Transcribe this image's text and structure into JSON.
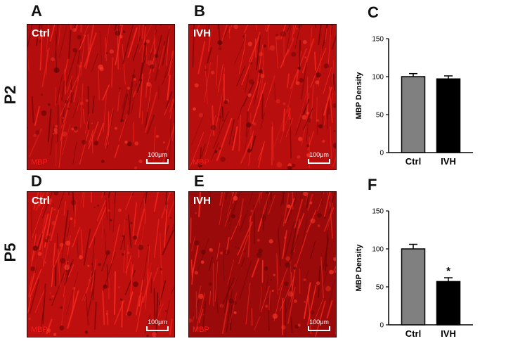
{
  "panel_letters": [
    "A",
    "B",
    "C",
    "D",
    "E",
    "F"
  ],
  "row_labels": [
    "P2",
    "P5"
  ],
  "micrographs": [
    {
      "condition": "Ctrl",
      "stain": "MBP",
      "scale_bar": "100μm",
      "base_color": "#b40d0d"
    },
    {
      "condition": "IVH",
      "stain": "MBP",
      "scale_bar": "100μm",
      "base_color": "#b80e0e"
    },
    {
      "condition": "Ctrl",
      "stain": "MBP",
      "scale_bar": "100μm",
      "base_color": "#be0f0f"
    },
    {
      "condition": "IVH",
      "stain": "MBP",
      "scale_bar": "100μm",
      "base_color": "#9a0a0a"
    }
  ],
  "colors": {
    "ctrl_bar": "#808080",
    "ivh_bar": "#000000"
  },
  "chart_data": [
    {
      "type": "bar",
      "categories": [
        "Ctrl",
        "IVH"
      ],
      "values": [
        100,
        97
      ],
      "errors": [
        4,
        4
      ],
      "ylabel": "MBP Density",
      "ylim": [
        0,
        150
      ],
      "yticks": [
        "0",
        "50",
        "100",
        "150"
      ],
      "annotations": [
        "",
        ""
      ]
    },
    {
      "type": "bar",
      "categories": [
        "Ctrl",
        "IVH"
      ],
      "values": [
        100,
        57
      ],
      "errors": [
        6,
        5
      ],
      "ylabel": "MBP Density",
      "ylim": [
        0,
        150
      ],
      "yticks": [
        "0",
        "50",
        "100",
        "150"
      ],
      "annotations": [
        "",
        "*"
      ]
    }
  ]
}
